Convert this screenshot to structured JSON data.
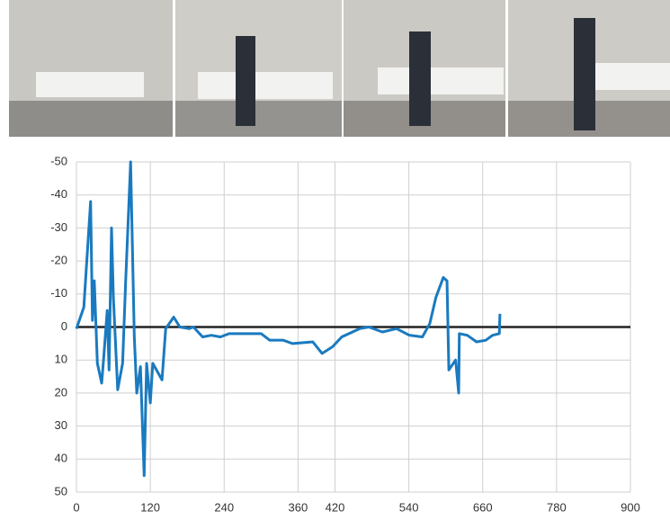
{
  "chart_data": {
    "type": "line",
    "x": [
      0,
      12,
      23,
      26,
      29,
      34,
      41,
      44,
      50,
      53,
      57,
      60,
      67,
      75,
      80,
      88,
      94,
      98,
      104,
      110,
      114,
      120,
      124,
      139,
      145,
      158,
      168,
      183,
      190,
      205,
      219,
      234,
      248,
      300,
      314,
      336,
      351,
      384,
      399,
      416,
      431,
      460,
      475,
      497,
      520,
      541,
      562,
      574,
      584,
      596,
      602,
      605,
      616,
      621,
      622,
      635,
      650,
      665,
      676,
      687,
      688
    ],
    "series": [
      {
        "color": "#1a7abf",
        "values": [
          0.5,
          -6,
          -38,
          -2,
          -14,
          11,
          17,
          10,
          -5,
          13,
          -30,
          -9,
          19,
          11,
          -14,
          -50,
          3,
          20,
          12,
          45,
          11,
          23,
          11,
          16,
          0.5,
          -3,
          0,
          0.5,
          0,
          3,
          2.5,
          3,
          2,
          2,
          4,
          4,
          5,
          4.5,
          8,
          6,
          3,
          0.5,
          0,
          1.5,
          0.5,
          2.5,
          3,
          -1,
          -9,
          -15,
          -14,
          13,
          10,
          20,
          2,
          2.5,
          4.5,
          4,
          2.5,
          2,
          -4
        ]
      }
    ],
    "xlim": [
      0,
      900
    ],
    "xticks": [
      0,
      120,
      240,
      360,
      420,
      540,
      660,
      780,
      900
    ],
    "ylim": [
      -50,
      50
    ],
    "yticks": [
      -50,
      -40,
      -30,
      -20,
      -10,
      0,
      10,
      20,
      30,
      40,
      50
    ],
    "inverted_y": true,
    "grid": true
  }
}
